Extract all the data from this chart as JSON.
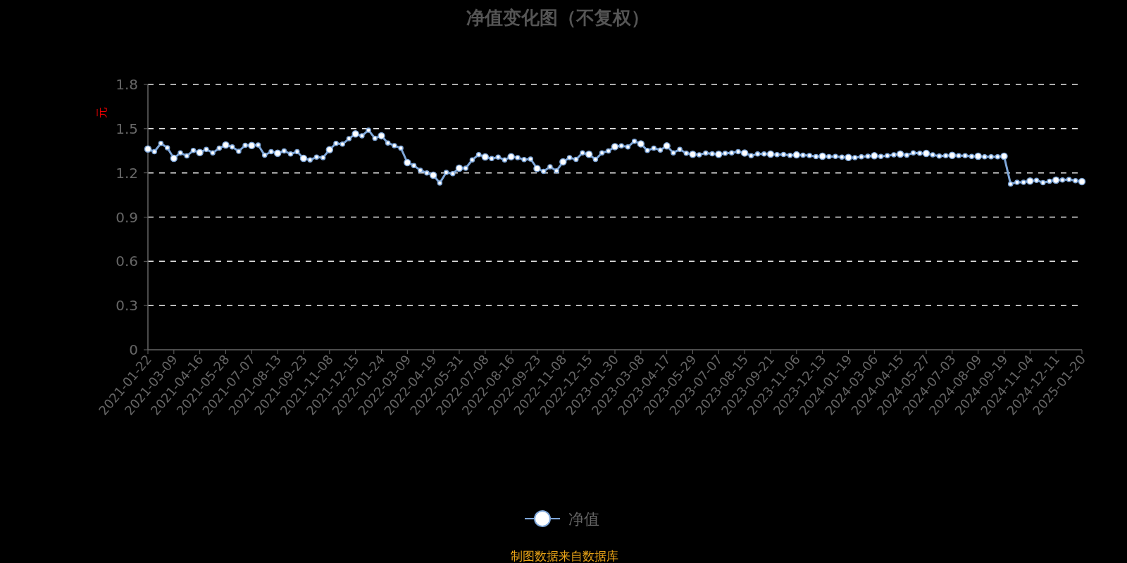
{
  "chart_data": {
    "type": "line",
    "title": "净值变化图（不复权）",
    "ylabel": "元",
    "annotations": [
      "制图数据来自数据库"
    ],
    "categories": [
      "2021-01-22",
      null,
      null,
      null,
      "2021-03-09",
      null,
      null,
      null,
      "2021-04-16",
      null,
      null,
      null,
      "2021-05-28",
      null,
      null,
      null,
      "2021-07-07",
      null,
      null,
      null,
      "2021-08-13",
      null,
      null,
      null,
      "2021-09-23",
      null,
      null,
      null,
      "2021-11-08",
      null,
      null,
      null,
      "2021-12-15",
      null,
      null,
      null,
      "2022-01-24",
      null,
      null,
      null,
      "2022-03-09",
      null,
      null,
      null,
      "2022-04-19",
      null,
      null,
      null,
      "2022-05-31",
      null,
      null,
      null,
      "2022-07-08",
      null,
      null,
      null,
      "2022-08-16",
      null,
      null,
      null,
      "2022-09-23",
      null,
      null,
      null,
      "2022-11-08",
      null,
      null,
      null,
      "2022-12-15",
      null,
      null,
      null,
      "2023-01-30",
      null,
      null,
      null,
      "2023-03-08",
      null,
      null,
      null,
      "2023-04-17",
      null,
      null,
      null,
      "2023-05-29",
      null,
      null,
      null,
      "2023-07-07",
      null,
      null,
      null,
      "2023-08-15",
      null,
      null,
      null,
      "2023-09-21",
      null,
      null,
      null,
      "2023-11-06",
      null,
      null,
      null,
      "2023-12-13",
      null,
      null,
      null,
      "2024-01-19",
      null,
      null,
      null,
      "2024-03-06",
      null,
      null,
      null,
      "2024-04-15",
      null,
      null,
      null,
      "2024-05-27",
      null,
      null,
      null,
      "2024-07-03",
      null,
      null,
      null,
      "2024-08-09",
      null,
      null,
      null,
      "2024-09-19",
      null,
      null,
      null,
      "2024-11-04",
      null,
      null,
      null,
      "2024-12-11",
      null,
      null,
      null,
      "2025-01-20"
    ],
    "series": [
      {
        "name": "净值",
        "color": "#7fa7d9",
        "values": [
          1.362,
          1.344,
          1.4,
          1.37,
          1.299,
          1.336,
          1.315,
          1.352,
          1.338,
          1.36,
          1.336,
          1.368,
          1.389,
          1.376,
          1.347,
          1.387,
          1.386,
          1.389,
          1.32,
          1.344,
          1.333,
          1.349,
          1.328,
          1.344,
          1.299,
          1.288,
          1.307,
          1.304,
          1.357,
          1.4,
          1.395,
          1.432,
          1.465,
          1.451,
          1.49,
          1.435,
          1.452,
          1.403,
          1.385,
          1.368,
          1.27,
          1.25,
          1.218,
          1.2,
          1.184,
          1.132,
          1.203,
          1.195,
          1.232,
          1.232,
          1.288,
          1.324,
          1.308,
          1.297,
          1.307,
          1.288,
          1.31,
          1.304,
          1.29,
          1.294,
          1.23,
          1.21,
          1.241,
          1.214,
          1.275,
          1.304,
          1.291,
          1.336,
          1.326,
          1.291,
          1.336,
          1.349,
          1.378,
          1.384,
          1.376,
          1.415,
          1.397,
          1.352,
          1.368,
          1.355,
          1.383,
          1.336,
          1.36,
          1.333,
          1.326,
          1.323,
          1.335,
          1.33,
          1.326,
          1.333,
          1.336,
          1.344,
          1.335,
          1.317,
          1.328,
          1.328,
          1.327,
          1.324,
          1.325,
          1.319,
          1.322,
          1.32,
          1.318,
          1.311,
          1.313,
          1.311,
          1.312,
          1.307,
          1.305,
          1.303,
          1.31,
          1.313,
          1.316,
          1.312,
          1.316,
          1.323,
          1.327,
          1.32,
          1.336,
          1.333,
          1.332,
          1.322,
          1.314,
          1.316,
          1.319,
          1.317,
          1.317,
          1.312,
          1.313,
          1.309,
          1.309,
          1.309,
          1.313,
          1.125,
          1.136,
          1.136,
          1.145,
          1.15,
          1.134,
          1.144,
          1.151,
          1.152,
          1.155,
          1.147,
          1.141
        ]
      }
    ],
    "ylim": [
      0,
      1.8
    ],
    "yticks": [
      0,
      0.3,
      0.6,
      0.9,
      1.2,
      1.5,
      1.8
    ],
    "grid": "y",
    "legend": "bottom",
    "marker": "circle",
    "line_style": "solid"
  }
}
